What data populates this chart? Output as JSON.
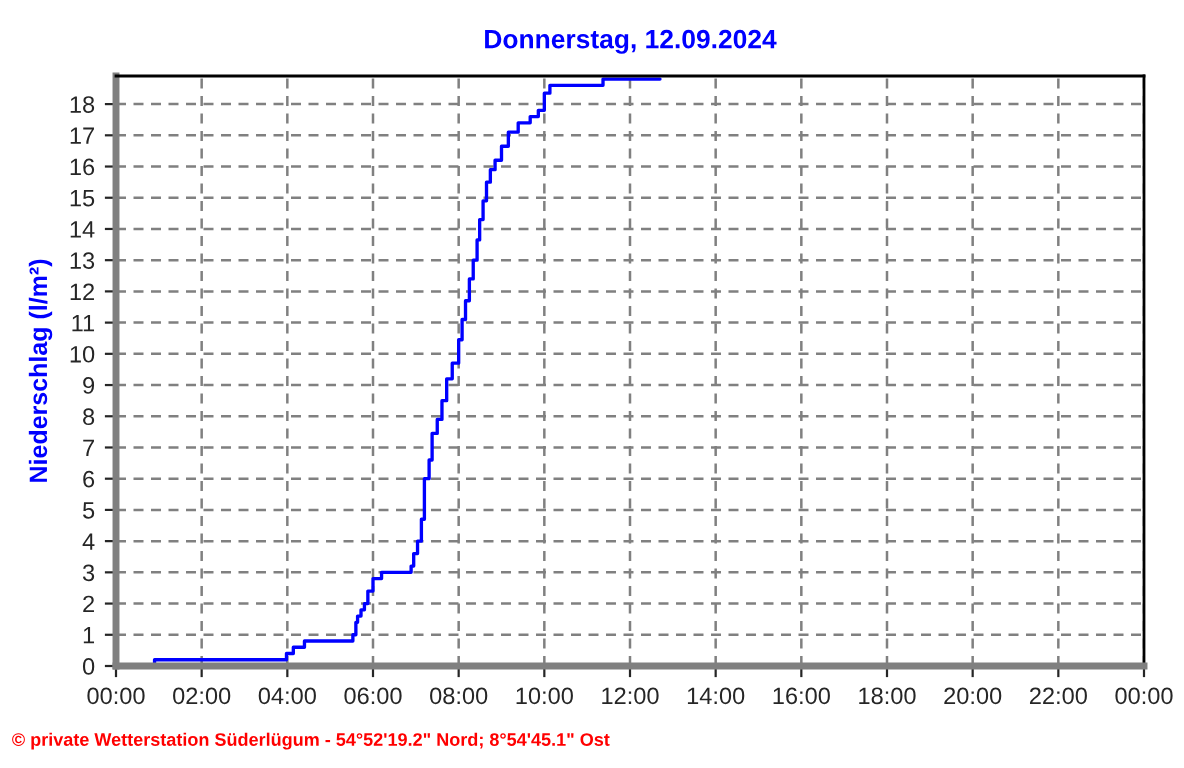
{
  "chart_data": {
    "type": "step",
    "title": "Donnerstag, 12.09.2024",
    "ylabel": "Niederschlag (l/m²)",
    "annotations": [
      "© private Wetterstation Süderlügum - 54°52'19.2\" Nord; 8°54'45.1\" Ost"
    ],
    "series": [
      {
        "color": "#0000ff",
        "x": [
          0.05,
          0.9,
          3.98,
          4.14,
          4.4,
          5.53,
          5.6,
          5.64,
          5.72,
          5.8,
          5.88,
          6.0,
          6.2,
          6.89,
          6.95,
          7.04,
          7.13,
          7.2,
          7.31,
          7.38,
          7.5,
          7.61,
          7.72,
          7.85,
          8.0,
          8.08,
          8.16,
          8.25,
          8.34,
          8.43,
          8.49,
          8.57,
          8.65,
          8.74,
          8.85,
          9.0,
          9.16,
          9.39,
          9.67,
          9.86,
          10.0,
          10.13,
          11.37,
          12.7
        ],
        "values": [
          0,
          0.2,
          0.4,
          0.6,
          0.8,
          1.0,
          1.4,
          1.6,
          1.8,
          2.0,
          2.4,
          2.8,
          3.0,
          3.2,
          3.6,
          4.0,
          4.7,
          6.0,
          6.6,
          7.45,
          7.9,
          8.5,
          9.2,
          9.7,
          10.45,
          11.1,
          11.7,
          12.4,
          13.0,
          13.65,
          14.3,
          14.9,
          15.5,
          15.9,
          16.2,
          16.65,
          17.1,
          17.4,
          17.6,
          17.8,
          18.35,
          18.6,
          18.8,
          18.8
        ]
      }
    ],
    "xlim": [
      0,
      24
    ],
    "xticks": [
      {
        "value": 0,
        "label": "00:00"
      },
      {
        "value": 2,
        "label": "02:00"
      },
      {
        "value": 4,
        "label": "04:00"
      },
      {
        "value": 6,
        "label": "06:00"
      },
      {
        "value": 8,
        "label": "08:00"
      },
      {
        "value": 10,
        "label": "10:00"
      },
      {
        "value": 12,
        "label": "12:00"
      },
      {
        "value": 14,
        "label": "14:00"
      },
      {
        "value": 16,
        "label": "16:00"
      },
      {
        "value": 18,
        "label": "18:00"
      },
      {
        "value": 20,
        "label": "20:00"
      },
      {
        "value": 22,
        "label": "22:00"
      },
      {
        "value": 24,
        "label": "00:00"
      }
    ],
    "ylim": [
      0,
      18.9
    ],
    "yticks": [
      0,
      1,
      2,
      3,
      4,
      5,
      6,
      7,
      8,
      9,
      10,
      11,
      12,
      13,
      14,
      15,
      16,
      17,
      18
    ],
    "grid": true,
    "marker": "none",
    "line_style": "solid"
  }
}
